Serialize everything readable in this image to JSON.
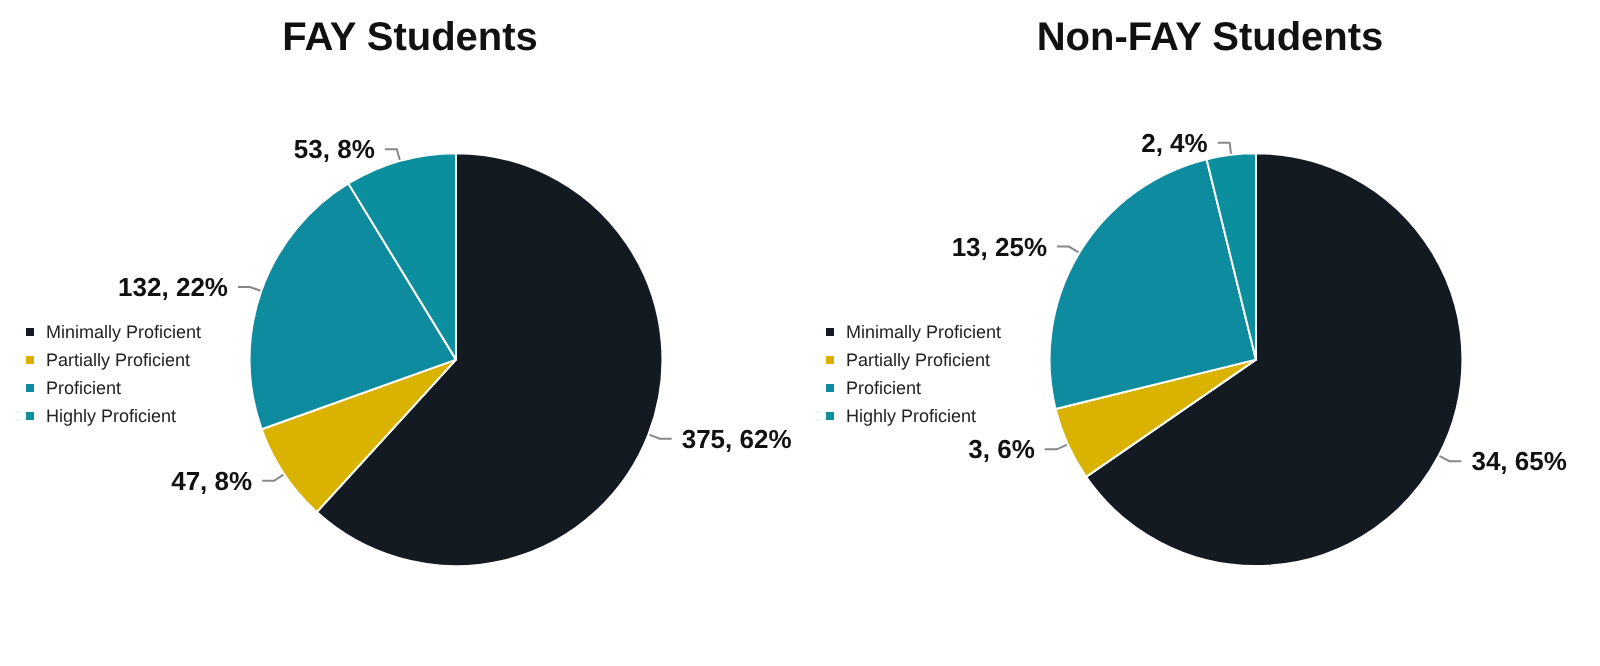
{
  "chart_data": [
    {
      "type": "pie",
      "title": "FAY Students",
      "categories": [
        "Minimally Proficient",
        "Partially Proficient",
        "Proficient",
        "Highly Proficient"
      ],
      "values": [
        375,
        47,
        132,
        53
      ],
      "colors": [
        "#131a22",
        "#d9b300",
        "#0f8ba0",
        "#0b8f9f"
      ],
      "value_labels": [
        "375, 62%",
        "47, 8%",
        "132, 22%",
        "53, 8%"
      ],
      "legend": "left"
    },
    {
      "type": "pie",
      "title": "Non-FAY Students",
      "categories": [
        "Minimally Proficient",
        "Partially Proficient",
        "Proficient",
        "Highly Proficient"
      ],
      "values": [
        34,
        3,
        13,
        2
      ],
      "colors": [
        "#131a22",
        "#d9b300",
        "#0f8ba0",
        "#0b8f9f"
      ],
      "value_labels": [
        "34, 65%",
        "3, 6%",
        "13, 25%",
        "2, 4%"
      ],
      "legend": "left"
    }
  ]
}
